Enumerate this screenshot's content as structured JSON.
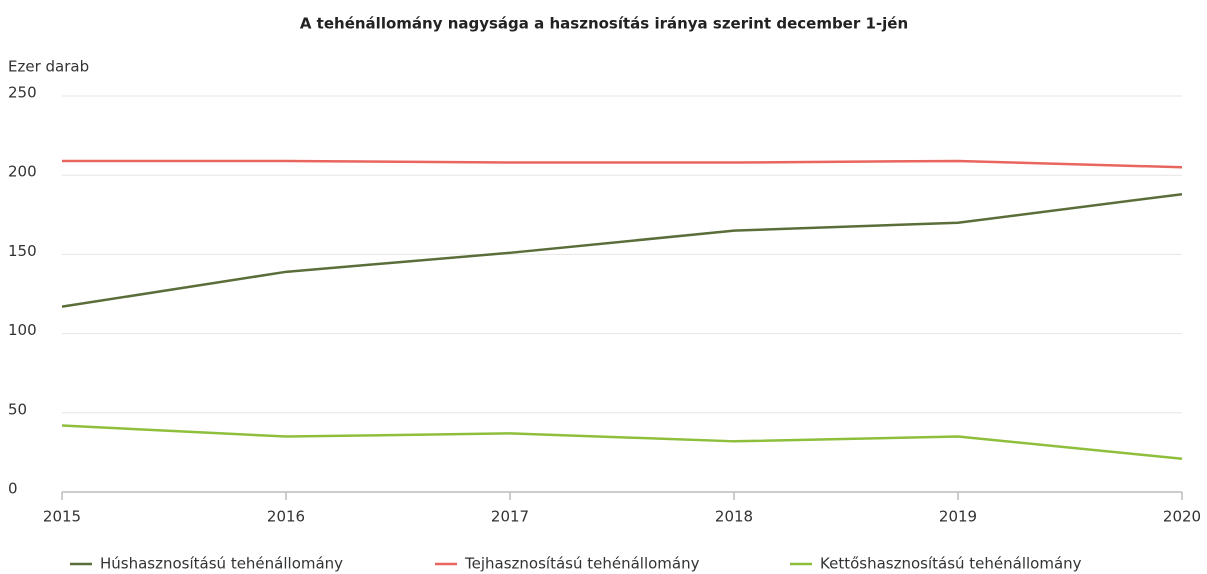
{
  "chart_data": {
    "type": "line",
    "title": "A tehénállomány nagysága a hasznosítás iránya szerint december 1-jén",
    "y_label": "Ezer darab",
    "x": [
      2015,
      2016,
      2017,
      2018,
      2019,
      2020
    ],
    "xlim": [
      2015,
      2020
    ],
    "xticks": [
      2015,
      2016,
      2017,
      2018,
      2019,
      2020
    ],
    "ylim": [
      0,
      250
    ],
    "yticks": [
      0,
      50,
      100,
      150,
      200,
      250
    ],
    "grid": true,
    "legend": "bottom",
    "series": [
      {
        "name": "Húshasznosítású tehénállomány",
        "color": "#5b6e3a",
        "values": [
          117,
          139,
          151,
          165,
          170,
          188
        ]
      },
      {
        "name": "Tejhasznosítású tehénállomány",
        "color": "#e8665e",
        "values": [
          209,
          209,
          208,
          208,
          209,
          205
        ]
      },
      {
        "name": "Kettőshasznosítású tehénállomány",
        "color": "#8dbf3c",
        "values": [
          42,
          35,
          37,
          32,
          35,
          21
        ]
      }
    ]
  }
}
